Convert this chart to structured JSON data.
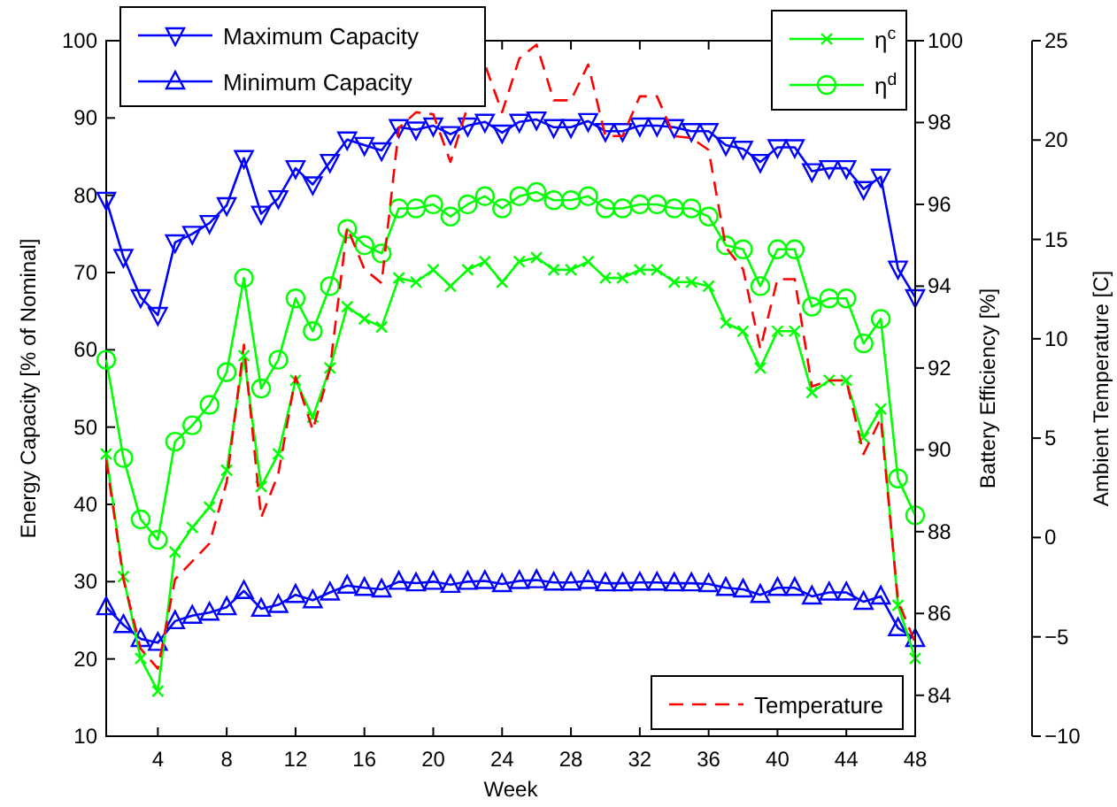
{
  "chart_data": {
    "type": "line",
    "xlabel": "Week",
    "ylabel": "Energy Capacity [% of Nominal]",
    "y2label": "Battery Efficiency [%]",
    "y3label": "Ambient Temperature [C]",
    "x": [
      1,
      2,
      3,
      4,
      5,
      6,
      7,
      8,
      9,
      10,
      11,
      12,
      13,
      14,
      15,
      16,
      17,
      18,
      19,
      20,
      21,
      22,
      23,
      24,
      25,
      26,
      27,
      28,
      29,
      30,
      31,
      32,
      33,
      34,
      35,
      36,
      37,
      38,
      39,
      40,
      41,
      42,
      43,
      44,
      45,
      46,
      47,
      48
    ],
    "xlim": [
      1,
      48
    ],
    "xticks": [
      4,
      8,
      12,
      16,
      20,
      24,
      28,
      32,
      36,
      40,
      44,
      48
    ],
    "ylim": [
      10,
      100
    ],
    "yticks": [
      10,
      20,
      30,
      40,
      50,
      60,
      70,
      80,
      90,
      100
    ],
    "y2lim": [
      83,
      100
    ],
    "y2ticks": [
      84,
      86,
      88,
      90,
      92,
      94,
      96,
      98,
      100
    ],
    "y3lim": [
      -10,
      25
    ],
    "y3ticks": [
      -10,
      -5,
      0,
      5,
      10,
      15,
      20,
      25
    ],
    "legend": "top left",
    "grid": false,
    "series": [
      {
        "name": "Maximum Capacity",
        "color": "#0000ff",
        "marker": "triangle",
        "values": [
          79.4,
          72,
          66.8,
          64.5,
          73.9,
          75,
          76.4,
          78.7,
          84.8,
          77.6,
          79.6,
          83.5,
          81.4,
          84.3,
          87.2,
          86.5,
          85.8,
          88.8,
          88.5,
          89,
          87.9,
          89,
          89.5,
          88.1,
          89.5,
          89.8,
          88.8,
          88.8,
          89.6,
          88.3,
          88.3,
          89,
          89,
          88.8,
          88.3,
          88.3,
          86.5,
          86,
          84.3,
          86.2,
          86.2,
          83.1,
          83.5,
          83.5,
          80.8,
          82.4,
          70.5,
          66.8
        ]
      },
      {
        "name": "Minimum Capacity",
        "color": "#0000ff",
        "marker": "triangle",
        "values": [
          26.7,
          24.4,
          22.6,
          22.1,
          24.9,
          25.6,
          26,
          26.7,
          28.8,
          26.5,
          27,
          28.3,
          27.6,
          28.6,
          29.5,
          29.2,
          29,
          30,
          29.8,
          30,
          29.6,
          30,
          30.1,
          29.7,
          30.1,
          30.2,
          29.9,
          29.9,
          30.1,
          29.8,
          29.8,
          29.9,
          29.9,
          29.8,
          29.8,
          29.7,
          29.2,
          29,
          28.3,
          29.2,
          29.2,
          28.1,
          28.6,
          28.6,
          27.4,
          28.1,
          24,
          22.6
        ]
      },
      {
        "name": "η$^{c}$",
        "color": "#00ff00",
        "marker": "cross",
        "axis": "y2",
        "values": [
          89.9,
          86.9,
          84.9,
          84.1,
          87.5,
          88.1,
          88.6,
          89.5,
          92.3,
          89.1,
          89.9,
          91.7,
          90.8,
          92,
          93.5,
          93.2,
          93,
          94.2,
          94.1,
          94.4,
          94,
          94.4,
          94.6,
          94.1,
          94.6,
          94.7,
          94.4,
          94.4,
          94.6,
          94.2,
          94.2,
          94.4,
          94.4,
          94.1,
          94.1,
          94,
          93.1,
          92.9,
          92,
          92.9,
          92.9,
          91.4,
          91.7,
          91.7,
          90.3,
          91,
          86.2,
          84.9
        ]
      },
      {
        "name": "η$^{d}$",
        "color": "#00ff00",
        "marker": "circle",
        "axis": "y2",
        "values": [
          92.2,
          89.8,
          88.3,
          87.8,
          90.2,
          90.6,
          91.1,
          91.9,
          94.2,
          91.5,
          92.2,
          93.7,
          92.9,
          94,
          95.4,
          95,
          94.8,
          95.9,
          95.9,
          96,
          95.7,
          96,
          96.2,
          95.9,
          96.2,
          96.3,
          96.1,
          96.1,
          96.2,
          95.9,
          95.9,
          96,
          96,
          95.9,
          95.9,
          95.7,
          95,
          94.9,
          94,
          94.9,
          94.9,
          93.5,
          93.7,
          93.7,
          92.6,
          93.2,
          89.3,
          88.4
        ]
      },
      {
        "name": "Temperature",
        "color": "#ff0000",
        "marker": "none",
        "line_style": "dashed",
        "axis": "y3",
        "values": [
          3.9,
          -2.1,
          -5.6,
          -6.6,
          -2.1,
          -1.2,
          -0.3,
          2.8,
          9.7,
          1,
          3.2,
          8.1,
          5.4,
          8.5,
          15.6,
          13.5,
          12.8,
          20.6,
          21.4,
          21.3,
          18.9,
          21.7,
          23.8,
          21.4,
          24.1,
          24.8,
          22,
          22,
          23.8,
          20.2,
          20.2,
          22.2,
          22.2,
          20.2,
          20.1,
          19.5,
          14.6,
          13.5,
          9.5,
          13,
          13,
          7.6,
          7.9,
          7.9,
          4.2,
          6,
          -3.2,
          -5.3
        ]
      }
    ]
  }
}
